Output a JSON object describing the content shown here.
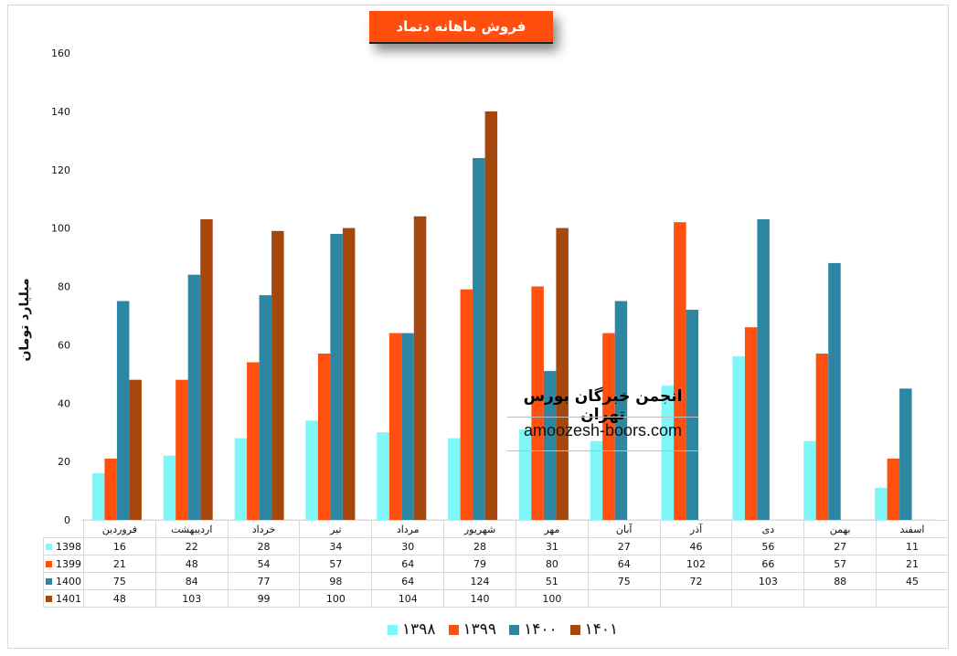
{
  "chart_data": {
    "type": "bar",
    "title": "فروش ماهانه دتماد",
    "ylabel": "میلیارد تومان",
    "ylim": [
      0,
      160
    ],
    "yticks": [
      0,
      20,
      40,
      60,
      80,
      100,
      120,
      140,
      160
    ],
    "grid": false,
    "legend_position": "bottom",
    "categories": [
      "فروردین",
      "اردیبهشت",
      "خرداد",
      "تیر",
      "مرداد",
      "شهریور",
      "مهر",
      "آبان",
      "آذر",
      "دی",
      "بهمن",
      "اسفند"
    ],
    "series": [
      {
        "name": "1398",
        "legend_label": "۱۳۹۸",
        "color": "#7ff6f8",
        "values": [
          16,
          22,
          28,
          34,
          30,
          28,
          31,
          27,
          46,
          56,
          27,
          11
        ]
      },
      {
        "name": "1399",
        "legend_label": "۱۳۹۹",
        "color": "#ff5010",
        "values": [
          21,
          48,
          54,
          57,
          64,
          79,
          80,
          64,
          102,
          66,
          57,
          21
        ]
      },
      {
        "name": "1400",
        "legend_label": "۱۴۰۰",
        "color": "#2e87a2",
        "values": [
          75,
          84,
          77,
          98,
          64,
          124,
          51,
          75,
          72,
          103,
          88,
          45
        ]
      },
      {
        "name": "1401",
        "legend_label": "۱۴۰۱",
        "color": "#a6480e",
        "values": [
          48,
          103,
          99,
          100,
          104,
          140,
          100,
          null,
          null,
          null,
          null,
          null
        ]
      }
    ]
  },
  "watermark": {
    "title": "انجمن خبرگان بورس تهران",
    "url": "amoozesh-boors.com"
  }
}
